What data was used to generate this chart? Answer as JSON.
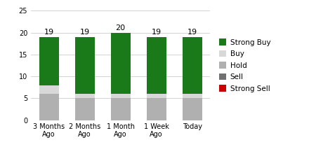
{
  "categories": [
    "3 Months\nAgo",
    "2 Months\nAgo",
    "1 Month\nAgo",
    "1 Week\nAgo",
    "Today"
  ],
  "strong_buy": [
    11,
    13,
    14,
    13,
    13
  ],
  "buy": [
    2,
    1,
    1,
    1,
    1
  ],
  "hold": [
    6,
    5,
    5,
    5,
    5
  ],
  "sell": [
    0,
    0,
    0,
    0,
    0
  ],
  "strong_sell": [
    0,
    0,
    0,
    0,
    0
  ],
  "totals": [
    19,
    19,
    20,
    19,
    19
  ],
  "colors": {
    "strong_buy": "#1a7a1a",
    "buy": "#d8d8d8",
    "hold": "#b0b0b0",
    "sell": "#707070",
    "strong_sell": "#cc0000"
  },
  "ylim": [
    0,
    25
  ],
  "yticks": [
    0,
    5,
    10,
    15,
    20,
    25
  ],
  "legend_labels": [
    "Strong Buy",
    "Buy",
    "Hold",
    "Sell",
    "Strong Sell"
  ],
  "bar_width": 0.55,
  "total_fontsize": 8,
  "legend_fontsize": 7.5,
  "tick_fontsize": 7,
  "background_color": "#ffffff"
}
